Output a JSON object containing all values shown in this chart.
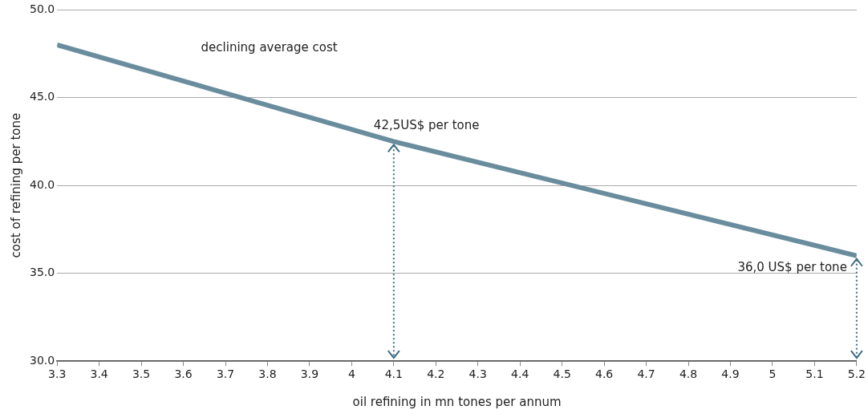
{
  "chart_data": {
    "type": "line",
    "xlabel": "oil refining in mn tones per annum",
    "ylabel": "cost of refining per tone",
    "x": [
      3.3,
      4.1,
      5.2
    ],
    "series": [
      {
        "color": "#6a8d9e",
        "values": [
          48.0,
          42.5,
          36.0
        ]
      }
    ],
    "xlim": [
      3.3,
      5.2
    ],
    "xticks": [
      3.3,
      3.4,
      3.5,
      3.6,
      3.7,
      3.8,
      3.9,
      4,
      4.1,
      4.2,
      4.3,
      4.4,
      4.5,
      4.6,
      4.7,
      4.8,
      4.9,
      5,
      5.1,
      5.2
    ],
    "ylim": [
      30,
      50
    ],
    "yticks": [
      {
        "value": 30,
        "label": "30.0"
      },
      {
        "value": 35,
        "label": "35.0"
      },
      {
        "value": 40,
        "label": "40.0"
      },
      {
        "value": 45,
        "label": "45.0"
      },
      {
        "value": 50,
        "label": "50.0"
      }
    ],
    "grid": "y",
    "legend": false,
    "marker": "none",
    "line_style": "solid",
    "annotations": [
      "declining average cost",
      {
        "text": "42,5US$ per tone",
        "x": 4.1,
        "y": 42.5
      },
      {
        "text": "36,0 US$ per tone",
        "x": 5.2,
        "y": 36.0
      }
    ]
  }
}
